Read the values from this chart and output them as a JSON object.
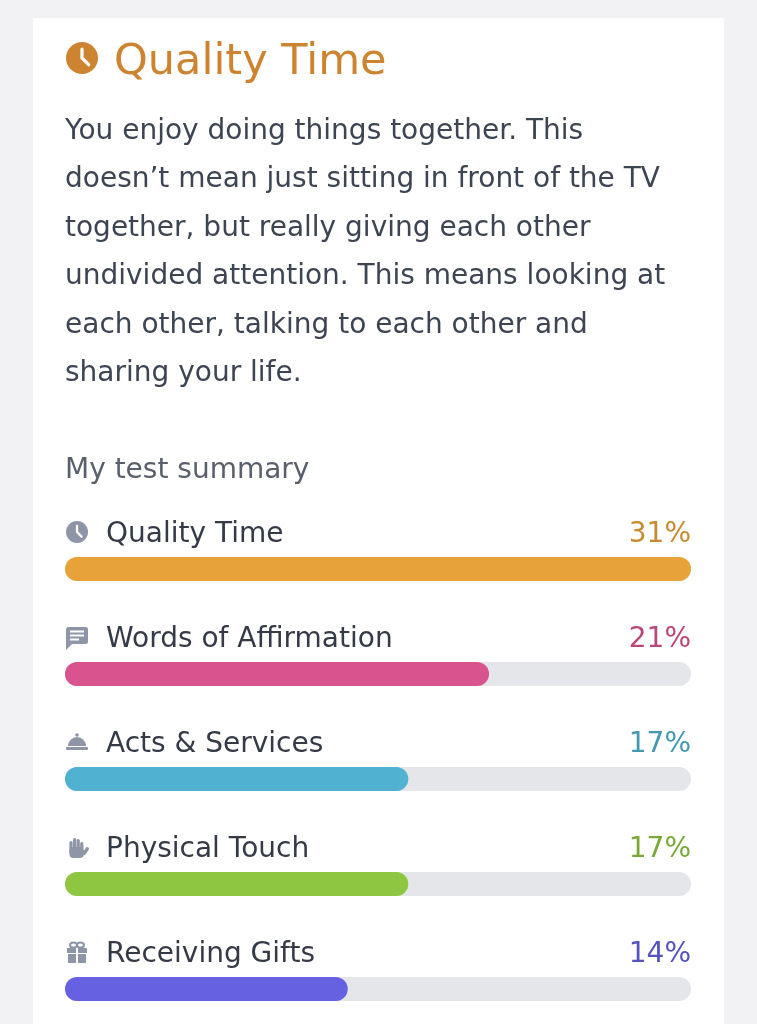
{
  "chart_data": {
    "type": "bar",
    "orientation": "horizontal",
    "title": "Quality Time",
    "subtitle": "You enjoy doing things together. This doesn’t mean just sitting in front of the TV together, but really giving each other undivided attention. This means looking at each other, talking to each other and sharing your life.",
    "annotations": [
      "My test summary"
    ],
    "categories": [
      "Quality Time",
      "Words of Affirmation",
      "Acts & Services",
      "Physical Touch",
      "Receiving Gifts"
    ],
    "values": [
      31,
      21,
      17,
      17,
      14
    ],
    "value_labels": [
      "31%",
      "21%",
      "17%",
      "17%",
      "14%"
    ],
    "colors": [
      "#e8a23a",
      "#d9538f",
      "#50b2d0",
      "#8fc641",
      "#6561e0"
    ]
  }
}
